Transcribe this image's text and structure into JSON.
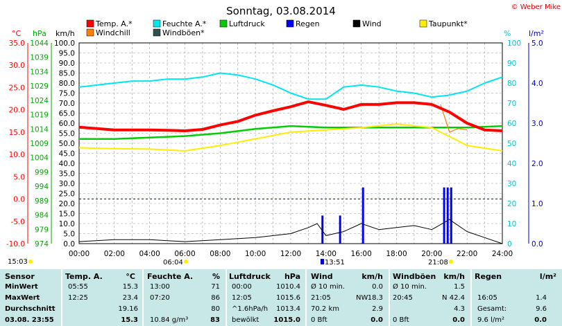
{
  "title": "Sonntag, 03.08.2014",
  "copyright": "© Weber Mike",
  "legend": [
    {
      "label": "Temp. A.*",
      "color": "#ff0000"
    },
    {
      "label": "Feuchte A.*",
      "color": "#00e5ee"
    },
    {
      "label": "Luftdruck",
      "color": "#00cc00"
    },
    {
      "label": "Regen",
      "color": "#0000ff"
    },
    {
      "label": "Wind",
      "color": "#000000"
    },
    {
      "label": "Taupunkt*",
      "color": "#ffee00"
    },
    {
      "label": "Windchill",
      "color": "#ff7f00"
    },
    {
      "label": "Windböen*",
      "color": "#2f4f4f"
    }
  ],
  "axis_units": {
    "temp": "°C",
    "press": "hPa",
    "wind": "km/h",
    "hum": "%",
    "rain": "l/m²"
  },
  "chart_data": {
    "type": "line",
    "x": [
      "00:00",
      "02:00",
      "04:00",
      "06:00",
      "08:00",
      "10:00",
      "12:00",
      "14:00",
      "16:00",
      "18:00",
      "20:00",
      "22:00",
      "24:00"
    ],
    "axes": {
      "temp": {
        "ticks": [
          "35.0",
          "30.0",
          "25.0",
          "20.0",
          "15.0",
          "10.0",
          "5.0",
          "0.0",
          "-5.0",
          "-10.0"
        ],
        "range": [
          -10,
          35
        ]
      },
      "press": {
        "ticks": [
          "1044",
          "1039",
          "1034",
          "1029",
          "1024",
          "1019",
          "1014",
          "1009",
          "1004",
          "999",
          "994",
          "989",
          "984",
          "979",
          "974"
        ],
        "range": [
          974,
          1044
        ]
      },
      "wind": {
        "ticks": [
          "100.0",
          "95.0",
          "90.0",
          "85.0",
          "80.0",
          "75.0",
          "70.0",
          "65.0",
          "60.0",
          "55.0",
          "50.0",
          "45.0",
          "40.0",
          "35.0",
          "30.0",
          "25.0",
          "20.0",
          "15.0",
          "10.0",
          "5.0",
          "0.0"
        ],
        "range": [
          0,
          100
        ]
      },
      "hum": {
        "ticks": [
          "100",
          "90",
          "80",
          "70",
          "60",
          "50",
          "40",
          "30",
          "20",
          "10",
          "0"
        ],
        "range": [
          0,
          100
        ]
      },
      "rain": {
        "ticks": [
          "5.0",
          "4.0",
          "3.0",
          "2.0",
          "1.0",
          "0.0"
        ],
        "range": [
          0,
          5
        ]
      }
    },
    "series": [
      {
        "name": "Temp. A.*",
        "axis": "temp",
        "x": [
          0,
          1,
          2,
          3,
          4,
          5,
          6,
          7,
          8,
          9,
          10,
          11,
          12,
          13,
          14,
          15,
          16,
          17,
          18,
          19,
          20,
          21,
          22,
          23,
          24
        ],
        "y": [
          16.1,
          15.8,
          15.5,
          15.5,
          15.5,
          15.4,
          15.3,
          15.6,
          16.6,
          17.4,
          18.8,
          19.8,
          20.7,
          21.8,
          21.0,
          20.1,
          21.2,
          21.2,
          21.6,
          21.6,
          21.2,
          19.5,
          17.0,
          15.5,
          15.3
        ]
      },
      {
        "name": "Feuchte A.*",
        "axis": "hum",
        "x": [
          0,
          1,
          2,
          3,
          4,
          5,
          6,
          7,
          8,
          9,
          10,
          11,
          12,
          13,
          14,
          15,
          16,
          17,
          18,
          19,
          20,
          21,
          22,
          23,
          24
        ],
        "y": [
          78,
          79,
          80,
          81,
          81,
          82,
          82,
          83,
          85,
          84,
          82,
          79,
          75,
          72,
          72,
          78,
          79,
          78,
          76,
          75,
          73,
          74,
          76,
          80,
          83
        ]
      },
      {
        "name": "Luftdruck",
        "axis": "press",
        "x": [
          0,
          2,
          4,
          6,
          8,
          10,
          12,
          14,
          16,
          18,
          20,
          22,
          24
        ],
        "y": [
          1010.5,
          1010.5,
          1011,
          1011.5,
          1012.5,
          1014,
          1015,
          1014.5,
          1014.5,
          1014.5,
          1014.5,
          1014.5,
          1015
        ]
      },
      {
        "name": "Taupunkt*",
        "axis": "temp",
        "x": [
          0,
          2,
          4,
          6,
          8,
          10,
          12,
          14,
          16,
          18,
          20,
          22,
          24
        ],
        "y": [
          11.5,
          11.3,
          11.2,
          10.8,
          12.0,
          13.5,
          15.0,
          15.5,
          16.0,
          16.8,
          16.0,
          12.0,
          10.8
        ]
      },
      {
        "name": "Windchill",
        "axis": "temp",
        "x": [
          20.5,
          21,
          21.5,
          22
        ],
        "y": [
          21.2,
          15.0,
          15.8,
          15.5
        ]
      },
      {
        "name": "Wind",
        "axis": "wind",
        "x": [
          0,
          2,
          4,
          6,
          8,
          10,
          12,
          13,
          13.5,
          14,
          15,
          16,
          17,
          18,
          19,
          20,
          21,
          22,
          23,
          24
        ],
        "y": [
          1,
          2,
          2,
          1,
          2,
          3,
          5,
          8,
          10,
          4,
          6,
          10,
          7,
          8,
          9,
          7,
          12,
          6,
          3,
          0
        ]
      },
      {
        "name": "Regen",
        "axis": "rain",
        "type": "bar",
        "x": [
          13.8,
          14.8,
          16.1,
          20.7,
          20.9,
          21.1
        ],
        "y": [
          0.7,
          0.7,
          1.4,
          1.4,
          1.4,
          1.4
        ]
      }
    ],
    "annotations": {
      "sunrise": "06:04",
      "sunset": "21:08",
      "left_time": "15:03",
      "marker_time": "13:51"
    }
  },
  "table": {
    "headers": [
      "Sensor",
      "Temp. A.",
      "°C",
      "Feuchte A.",
      "%",
      "Luftdruck",
      "hPa",
      "Wind",
      "km/h",
      "Windböen",
      "km/h",
      "Regen",
      "l/m²"
    ],
    "rows": [
      {
        "label": "MinWert",
        "temp_time": "05:55",
        "temp": "15.3",
        "hum_time": "13:00",
        "hum": "71",
        "press_time": "00:00",
        "press": "1010.4",
        "wind_label": "Ø 10 min.",
        "wind": "0.0",
        "gust_label": "Ø 10 min.",
        "gust": "1.5",
        "rain_label": "",
        "rain": ""
      },
      {
        "label": "MaxWert",
        "temp_time": "12:25",
        "temp": "23.4",
        "hum_time": "07:20",
        "hum": "86",
        "press_time": "12:05",
        "press": "1015.6",
        "wind_label": "21:05",
        "wind_dir": "NW",
        "wind": "18.3",
        "gust_label": "20:45",
        "gust_dir": "N",
        "gust": "42.4",
        "rain_label": "16:05",
        "rain": "1.4"
      },
      {
        "label": "Durchschnitt",
        "temp_time": "",
        "temp": "19.16",
        "hum_time": "",
        "hum": "80",
        "press_time": "^1.6hPa/h",
        "press": "1013.4",
        "wind_label": "70.2 km",
        "wind": "2.9",
        "gust_label": "",
        "gust": "4.3",
        "rain_label": "Gesamt:",
        "rain": "9.6"
      },
      {
        "label": "03.08.  23:55",
        "temp_time": "",
        "temp": "15.3",
        "hum_time": "10.84 g/m³",
        "hum": "83",
        "press_time": "bewölkt",
        "press": "1015.0",
        "wind_label": "0 Bft",
        "wind": "0.0",
        "gust_label": "0 Bft",
        "gust": "0.0",
        "rain_label": "9.6 l/m²",
        "rain": "0.0"
      }
    ]
  }
}
